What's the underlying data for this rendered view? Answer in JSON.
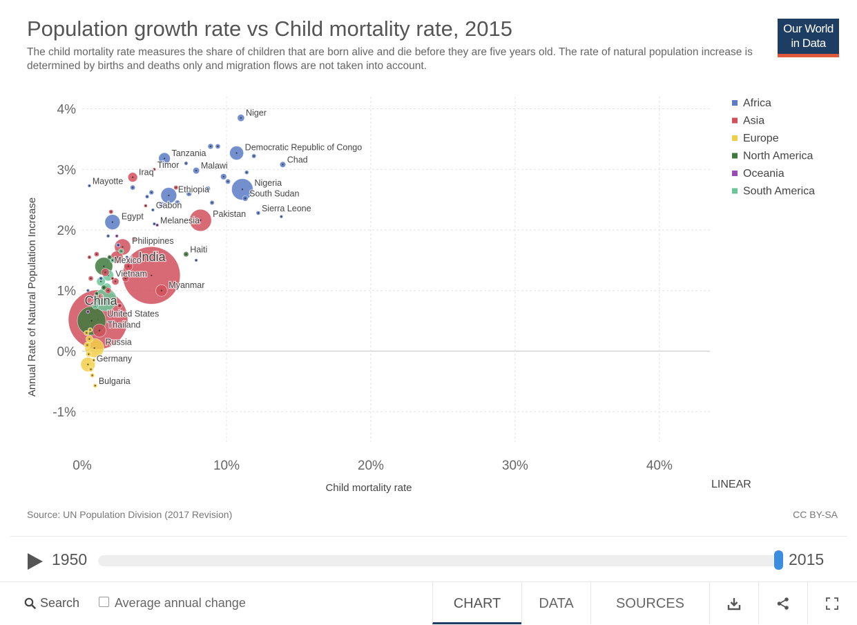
{
  "header": {
    "title": "Population growth rate vs Child mortality rate, 2015",
    "subtitle": "The child mortality rate measures the share of children that are born alive and die before they are five years old. The rate of natural population increase is determined by births and deaths only and migration flows are not taken into account.",
    "logo_line1": "Our World",
    "logo_line2": "in Data"
  },
  "footer": {
    "source": "Source: UN Population Division (2017 Revision)",
    "license": "CC BY-SA"
  },
  "timeline": {
    "start_year": "1950",
    "end_year": "2015",
    "play_icon": "play-icon"
  },
  "controls": {
    "search_label": "Search",
    "search_icon": "search-icon",
    "average_change_label": "Average annual change",
    "tabs": [
      "CHART",
      "DATA",
      "SOURCES"
    ],
    "active_tab": "CHART",
    "download_icon": "download-icon",
    "share_icon": "share-icon",
    "fullscreen_icon": "fullscreen-icon"
  },
  "chart_data": {
    "type": "scatter",
    "title": "Population growth rate vs Child mortality rate, 2015",
    "xlabel": "Child mortality rate",
    "ylabel": "Annual Rate of Natural Population Increase",
    "x_unit": "%",
    "y_unit": "%",
    "xlim": [
      0,
      43.5
    ],
    "ylim": [
      -1.5,
      4.2
    ],
    "x_ticks": [
      "0%",
      "10%",
      "20%",
      "30%",
      "40%"
    ],
    "x_tick_values": [
      0,
      10,
      20,
      30,
      40
    ],
    "y_ticks": [
      "4%",
      "3%",
      "2%",
      "1%",
      "0%",
      "-1%"
    ],
    "y_tick_values": [
      4,
      3,
      2,
      1,
      0,
      -1
    ],
    "scale_toggle": "LINEAR",
    "grid": true,
    "legend_position": "right",
    "colors": {
      "Africa": "#5b7bc4",
      "Asia": "#d0505c",
      "Europe": "#f2cf4a",
      "North America": "#3f7a3f",
      "Oceania": "#9b4cb0",
      "South America": "#6cc59a"
    },
    "series": [
      {
        "name": "Africa",
        "points": [
          {
            "label": "Niger",
            "x": 11.0,
            "y": 3.85,
            "size": 20
          },
          {
            "label": "Democratic Republic of Congo",
            "x": 10.7,
            "y": 3.27,
            "size": 77
          },
          {
            "label": "Chad",
            "x": 13.9,
            "y": 3.08,
            "size": 14
          },
          {
            "label": "Tanzania",
            "x": 5.7,
            "y": 3.18,
            "size": 53
          },
          {
            "label": "Nigeria",
            "x": 11.1,
            "y": 2.67,
            "size": 182
          },
          {
            "label": "South Sudan",
            "x": 11.3,
            "y": 2.52,
            "size": 12
          },
          {
            "label": "Sierra Leone",
            "x": 12.2,
            "y": 2.28,
            "size": 7
          },
          {
            "label": "Ethiopia",
            "x": 6.0,
            "y": 2.57,
            "size": 99
          },
          {
            "label": "Gabon",
            "x": 4.9,
            "y": 2.33,
            "size": 2
          },
          {
            "label": "Egypt",
            "x": 2.1,
            "y": 2.13,
            "size": 91
          },
          {
            "label": "Malawi",
            "x": 7.9,
            "y": 2.98,
            "size": 17
          },
          {
            "x": 8.9,
            "y": 3.38,
            "size": 12
          },
          {
            "x": 9.4,
            "y": 3.38,
            "size": 10
          },
          {
            "x": 7.2,
            "y": 3.1,
            "size": 6
          },
          {
            "x": 11.9,
            "y": 3.22,
            "size": 8
          },
          {
            "x": 9.8,
            "y": 2.88,
            "size": 15
          },
          {
            "x": 10.1,
            "y": 2.8,
            "size": 10
          },
          {
            "x": 8.7,
            "y": 2.68,
            "size": 11
          },
          {
            "x": 7.4,
            "y": 2.6,
            "size": 12
          },
          {
            "x": 4.8,
            "y": 2.62,
            "size": 9
          },
          {
            "x": 5.5,
            "y": 2.42,
            "size": 13
          },
          {
            "x": 6.6,
            "y": 2.45,
            "size": 11
          },
          {
            "x": 9.0,
            "y": 2.45,
            "size": 8
          },
          {
            "x": 11.4,
            "y": 2.95,
            "size": 7
          },
          {
            "x": 13.8,
            "y": 2.22,
            "size": 4
          },
          {
            "x": 3.5,
            "y": 2.7,
            "size": 10
          },
          {
            "x": 4.5,
            "y": 2.55,
            "size": 6
          },
          {
            "x": 5.0,
            "y": 2.1,
            "size": 4
          },
          {
            "x": 1.8,
            "y": 1.9,
            "size": 5
          },
          {
            "x": 2.5,
            "y": 1.75,
            "size": 6
          },
          {
            "x": 3.1,
            "y": 1.55,
            "size": 4
          },
          {
            "x": 7.9,
            "y": 1.5,
            "size": 3
          },
          {
            "x": 0.4,
            "y": 1.0,
            "size": 3
          },
          {
            "x": 1.3,
            "y": 1.2,
            "size": 6
          }
        ]
      },
      {
        "name": "Asia",
        "points": [
          {
            "label": "India",
            "x": 4.8,
            "y": 1.25,
            "size": 1309
          },
          {
            "label": "China",
            "x": 1.1,
            "y": 0.52,
            "size": 1397
          },
          {
            "label": "Pakistan",
            "x": 8.2,
            "y": 2.16,
            "size": 189
          },
          {
            "label": "Myanmar",
            "x": 5.5,
            "y": 1.0,
            "size": 53
          },
          {
            "label": "Iraq",
            "x": 3.5,
            "y": 2.87,
            "size": 36
          },
          {
            "label": "Thailand",
            "x": 1.2,
            "y": 0.34,
            "size": 68
          },
          {
            "label": "Philippines",
            "x": 2.8,
            "y": 1.72,
            "size": 102
          },
          {
            "label": "Timor",
            "x": 5.0,
            "y": 3.0,
            "size": 1
          },
          {
            "x": 2.4,
            "y": 1.55,
            "size": 60
          },
          {
            "x": 3.2,
            "y": 1.4,
            "size": 30
          },
          {
            "x": 1.6,
            "y": 1.3,
            "size": 25
          },
          {
            "x": 2.3,
            "y": 1.15,
            "size": 20
          },
          {
            "x": 1.8,
            "y": 1.0,
            "size": 15
          },
          {
            "x": 1.0,
            "y": 1.6,
            "size": 10
          },
          {
            "x": 1.3,
            "y": 0.9,
            "size": 12
          },
          {
            "x": 3.6,
            "y": 1.85,
            "size": 10
          },
          {
            "x": 2.0,
            "y": 2.3,
            "size": 8
          },
          {
            "x": 4.4,
            "y": 2.4,
            "size": 5
          },
          {
            "x": 6.5,
            "y": 2.7,
            "size": 8
          },
          {
            "x": 0.6,
            "y": 1.2,
            "size": 10
          },
          {
            "x": 0.7,
            "y": 0.8,
            "size": 8
          },
          {
            "x": 0.5,
            "y": 1.55,
            "size": 6
          },
          {
            "x": 3.0,
            "y": 1.2,
            "size": 18
          },
          {
            "x": 2.6,
            "y": 0.75,
            "size": 9
          }
        ]
      },
      {
        "name": "Europe",
        "points": [
          {
            "label": "Russia",
            "x": 0.85,
            "y": 0.05,
            "size": 144
          },
          {
            "label": "Germany",
            "x": 0.4,
            "y": -0.22,
            "size": 82
          },
          {
            "label": "Bulgaria",
            "x": 0.9,
            "y": -0.57,
            "size": 7
          },
          {
            "x": 0.5,
            "y": 0.2,
            "size": 20
          },
          {
            "x": 0.35,
            "y": 0.1,
            "size": 15
          },
          {
            "x": 0.45,
            "y": -0.05,
            "size": 12
          },
          {
            "x": 0.6,
            "y": -0.3,
            "size": 10
          },
          {
            "x": 0.7,
            "y": -0.4,
            "size": 8
          },
          {
            "x": 0.3,
            "y": 0.3,
            "size": 10
          },
          {
            "x": 0.55,
            "y": 0.35,
            "size": 8
          },
          {
            "x": 0.8,
            "y": -0.15,
            "size": 6
          }
        ]
      },
      {
        "name": "North America",
        "points": [
          {
            "label": "United States",
            "x": 0.65,
            "y": 0.5,
            "size": 322
          },
          {
            "label": "Mexico",
            "x": 1.5,
            "y": 1.4,
            "size": 125
          },
          {
            "label": "Haiti",
            "x": 7.2,
            "y": 1.6,
            "size": 11
          },
          {
            "x": 1.9,
            "y": 1.55,
            "size": 8
          },
          {
            "x": 1.5,
            "y": 1.05,
            "size": 10
          },
          {
            "x": 1.0,
            "y": 0.95,
            "size": 6
          }
        ]
      },
      {
        "name": "Oceania",
        "points": [
          {
            "label": "Melanesia",
            "x": 5.2,
            "y": 2.08,
            "size": 4
          },
          {
            "x": 2.4,
            "y": 1.9,
            "size": 3
          },
          {
            "x": 0.4,
            "y": 0.65,
            "size": 4
          }
        ]
      },
      {
        "name": "South America",
        "points": [
          {
            "x": 1.6,
            "y": 0.85,
            "size": 206
          },
          {
            "x": 1.8,
            "y": 1.25,
            "size": 48
          },
          {
            "x": 1.3,
            "y": 1.15,
            "size": 30
          },
          {
            "x": 1.7,
            "y": 1.05,
            "size": 31
          },
          {
            "x": 2.7,
            "y": 1.65,
            "size": 11
          },
          {
            "x": 2.1,
            "y": 1.5,
            "size": 10
          },
          {
            "x": 0.9,
            "y": 0.75,
            "size": 17
          }
        ]
      }
    ],
    "other_labels": [
      {
        "label": "Mayotte",
        "x": 0.5,
        "y": 2.73,
        "series": "Africa",
        "size": 1
      },
      {
        "label": "Vietnam",
        "x": 2.1,
        "y": 1.2,
        "series": "Asia",
        "size": 1
      }
    ]
  }
}
